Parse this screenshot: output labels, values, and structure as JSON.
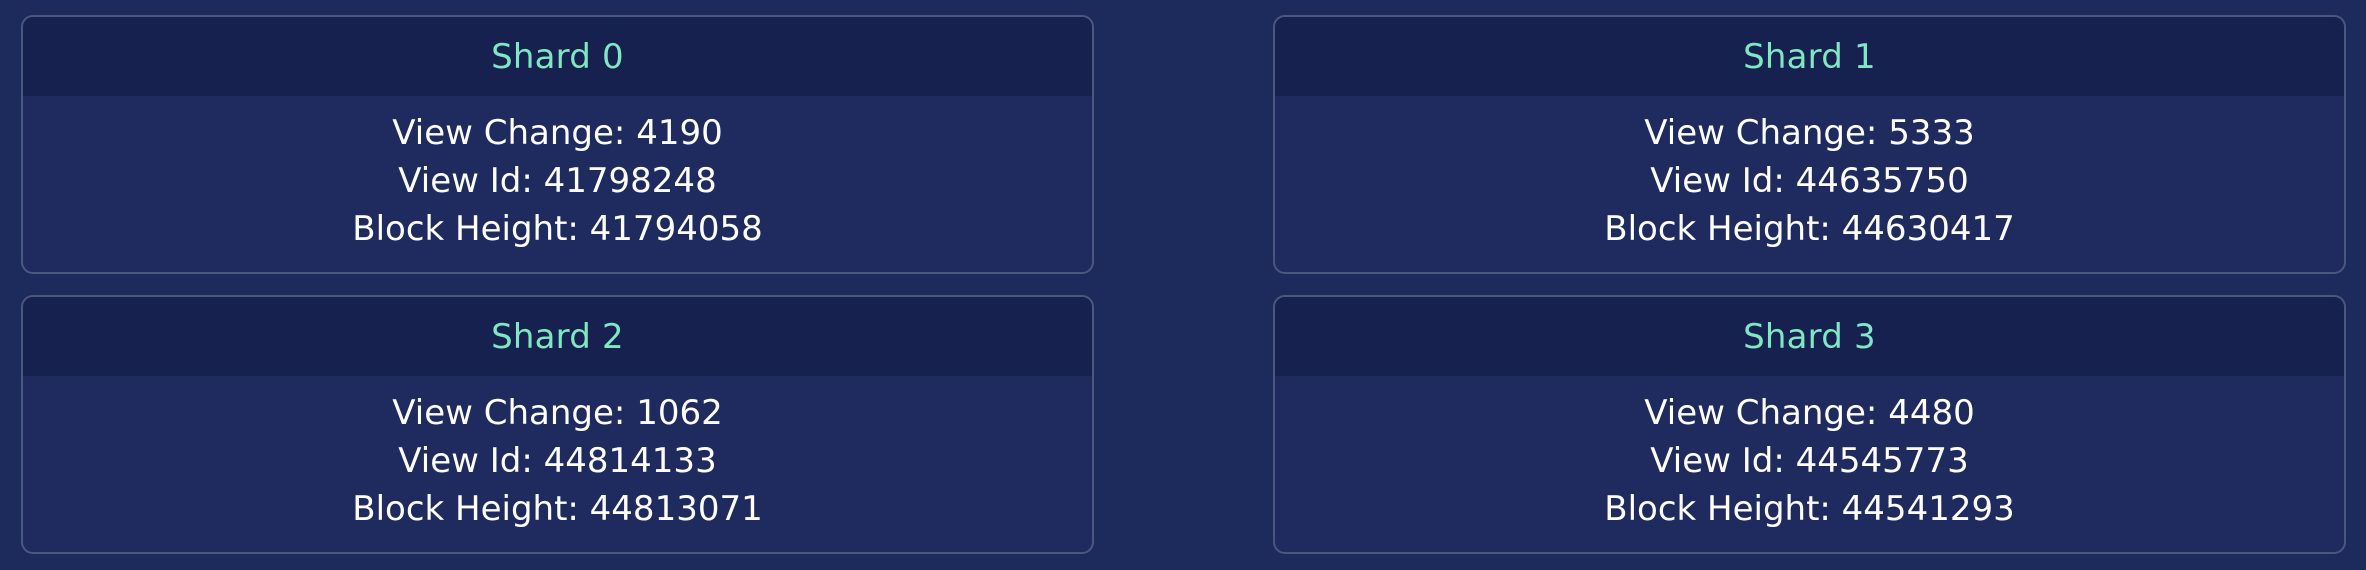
{
  "shards": [
    {
      "title": "Shard 0",
      "view_change": "View Change: 4190",
      "view_id": "View Id: 41798248",
      "block_height": "Block Height: 41794058"
    },
    {
      "title": "Shard 1",
      "view_change": "View Change: 5333",
      "view_id": "View Id: 44635750",
      "block_height": "Block Height: 44630417"
    },
    {
      "title": "Shard 2",
      "view_change": "View Change: 1062",
      "view_id": "View Id: 44814133",
      "block_height": "Block Height: 44813071"
    },
    {
      "title": "Shard 3",
      "view_change": "View Change: 4480",
      "view_id": "View Id: 44545773",
      "block_height": "Block Height: 44541293"
    }
  ],
  "colors": {
    "page_background": "#1c2a5c",
    "card_header": "#16214f",
    "card_border": "#4a5880",
    "title_text": "#7fe7c4",
    "body_text": "#ffffff"
  }
}
